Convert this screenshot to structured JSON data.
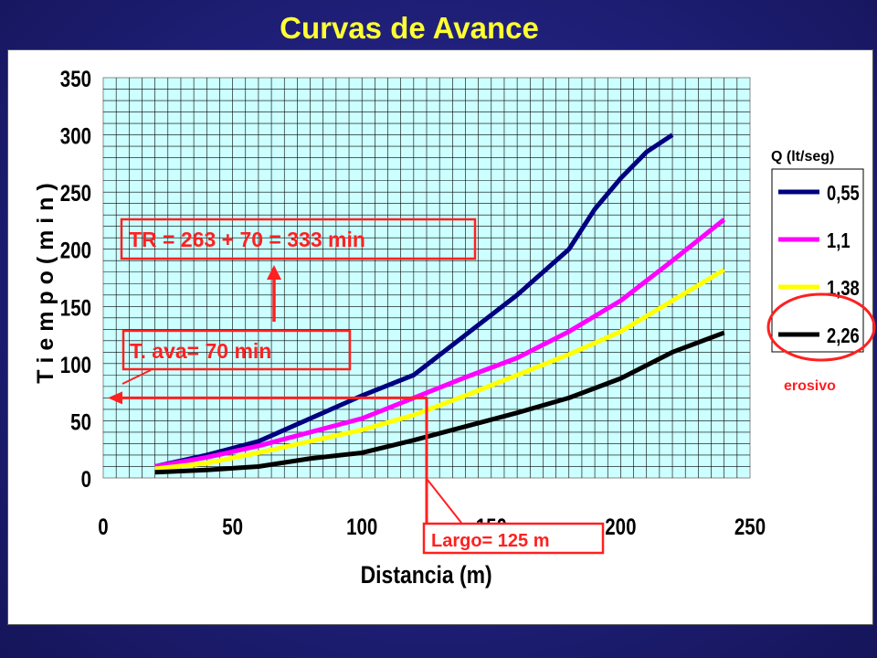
{
  "slide": {
    "title": "Curvas de Avance"
  },
  "colors": {
    "background": "#1f1f78",
    "title": "#ffff33",
    "plot_area": "#ccffff",
    "annotation": "#ff2020"
  },
  "chart_data": {
    "type": "line",
    "xlabel": "Distancia (m)",
    "ylabel": "T i e m p o   ( m i n )",
    "xlim": [
      0,
      250
    ],
    "ylim": [
      0,
      350
    ],
    "xticks": [
      "0",
      "50",
      "100",
      "150",
      "200",
      "250"
    ],
    "yticks": [
      "0",
      "50",
      "100",
      "150",
      "200",
      "250",
      "300",
      "350"
    ],
    "grid": true,
    "legend_title": "Q (lt/seg)",
    "legend_position": "right",
    "series": [
      {
        "name": "0,55",
        "color": "#000080",
        "x": [
          20,
          40,
          60,
          80,
          100,
          120,
          140,
          160,
          180,
          190,
          200,
          210,
          220
        ],
        "y": [
          10,
          20,
          32,
          52,
          72,
          90,
          125,
          160,
          200,
          235,
          262,
          285,
          300
        ]
      },
      {
        "name": "1,1",
        "color": "#ff00ff",
        "x": [
          20,
          40,
          60,
          80,
          100,
          120,
          140,
          160,
          180,
          200,
          220,
          240
        ],
        "y": [
          10,
          18,
          28,
          40,
          52,
          70,
          88,
          105,
          128,
          155,
          190,
          226
        ]
      },
      {
        "name": "1,38",
        "color": "#ffff00",
        "x": [
          20,
          40,
          60,
          80,
          100,
          120,
          140,
          160,
          180,
          200,
          220,
          240
        ],
        "y": [
          8,
          13,
          22,
          32,
          42,
          55,
          72,
          90,
          108,
          128,
          155,
          182
        ]
      },
      {
        "name": "2,26",
        "color": "#000000",
        "x": [
          20,
          40,
          60,
          80,
          100,
          120,
          140,
          160,
          180,
          200,
          220,
          240
        ],
        "y": [
          5,
          7,
          10,
          17,
          22,
          33,
          45,
          57,
          70,
          87,
          110,
          127
        ]
      }
    ]
  },
  "annotations": {
    "tr_label": "TR = 263 + 70 = 333  min",
    "tava_label": "T. ava= 70 min",
    "largo_label": "Largo= 125 m",
    "erosivo_label": "erosivo",
    "largo_x": 125,
    "tava_y": 70
  }
}
